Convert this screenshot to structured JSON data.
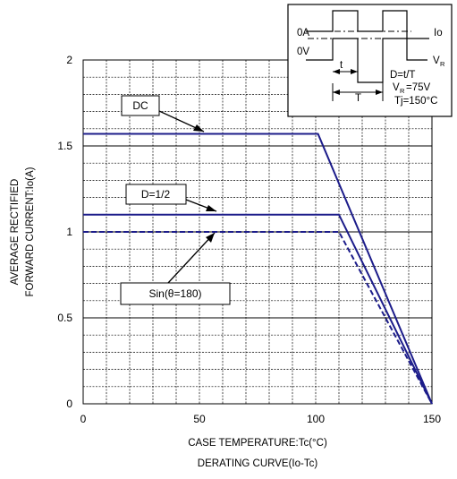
{
  "chart_data": {
    "type": "line",
    "xlabel": "CASE TEMPERATURE:Tc(°C)",
    "caption": "DERATING CURVE(Io-Tc)",
    "ylabel_line1": "AVERAGE RECTIFIED",
    "ylabel_line2": "FORWARD CURRENT:Io(A)",
    "xlim": [
      0,
      150
    ],
    "ylim": [
      0,
      2
    ],
    "xticks": [
      0,
      50,
      100,
      150
    ],
    "yticks": [
      0,
      0.5,
      1,
      1.5,
      2
    ],
    "xtick_labels": [
      "0",
      "50",
      "100",
      "150"
    ],
    "ytick_labels": [
      "0",
      "0.5",
      "1",
      "1.5",
      "2"
    ],
    "grid": true,
    "series": [
      {
        "name": "DC",
        "style": "solid",
        "color": "#1c1c8a",
        "x": [
          0,
          101,
          150
        ],
        "y": [
          1.57,
          1.57,
          0
        ]
      },
      {
        "name": "D=1/2",
        "style": "solid",
        "color": "#1c1c8a",
        "x": [
          0,
          110,
          150
        ],
        "y": [
          1.1,
          1.1,
          0
        ]
      },
      {
        "name": "Sin(θ=180)",
        "style": "dashed",
        "color": "#1c1c8a",
        "x": [
          0,
          110,
          150
        ],
        "y": [
          1.0,
          1.0,
          0
        ]
      }
    ],
    "annotations": [
      {
        "text": "DC",
        "target_x": 57,
        "target_y": 1.57
      },
      {
        "text": "D=1/2",
        "target_x": 58,
        "target_y": 1.1
      },
      {
        "text": "Sin(θ=180)",
        "target_x": 57,
        "target_y": 1.0
      }
    ],
    "inset": {
      "label_0A": "0A",
      "label_0V": "0V",
      "label_Io": "Io",
      "label_V": "V",
      "label_V_sub": "R",
      "label_t": "t",
      "label_T": "T",
      "label_D": "D=t/T",
      "label_VR": "V",
      "label_VR_sub": "R",
      "label_VR_val": "=75V",
      "label_Tj": "Tj=150°C"
    }
  }
}
